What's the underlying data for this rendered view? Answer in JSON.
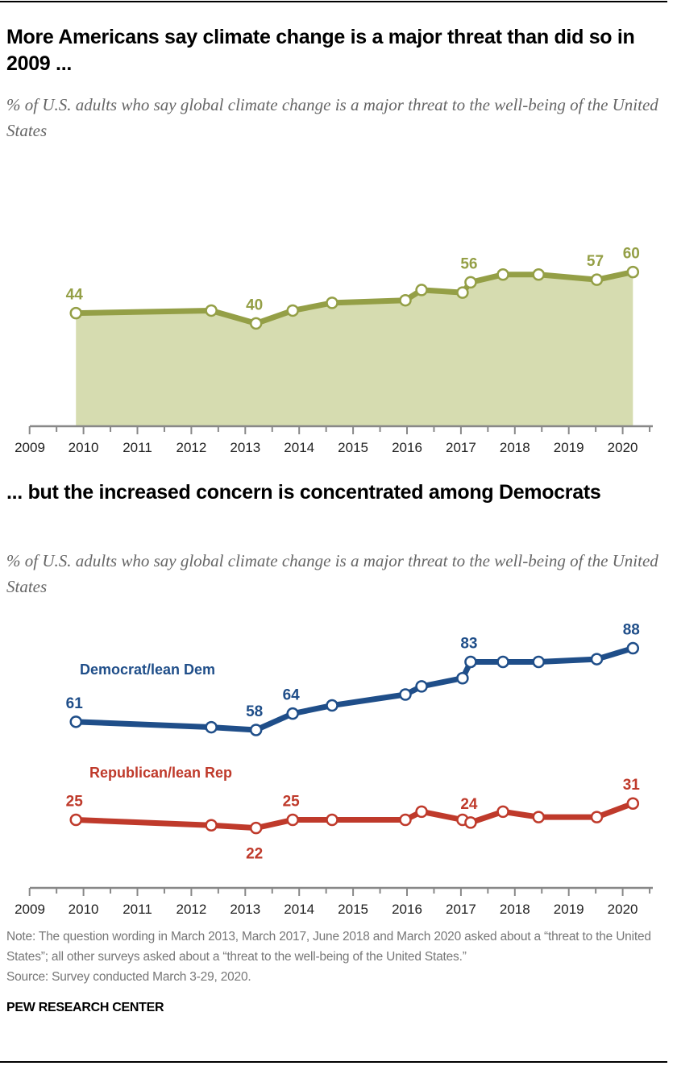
{
  "chart_data": [
    {
      "type": "area",
      "title": "More Americans say climate change is a major threat than did so in 2009 ...",
      "subtitle": "% of U.S. adults who say global climate change is a major threat to the well-being of the United States",
      "xlabel": "",
      "ylabel": "",
      "x_ticks": [
        2009,
        2010,
        2011,
        2012,
        2013,
        2014,
        2015,
        2016,
        2017,
        2018,
        2019,
        2020
      ],
      "xlim": [
        2009,
        2020.55
      ],
      "ylim": [
        0,
        70
      ],
      "grid": false,
      "colors": {
        "line": "#949f46",
        "fill": "#d6dcb0",
        "label": "#949f46"
      },
      "series": [
        {
          "points": [
            {
              "x": 2009.86,
              "y": 44,
              "labeled": true
            },
            {
              "x": 2012.37,
              "y": 45
            },
            {
              "x": 2013.2,
              "y": 40,
              "labeled": true
            },
            {
              "x": 2013.88,
              "y": 45
            },
            {
              "x": 2014.61,
              "y": 48
            },
            {
              "x": 2015.97,
              "y": 49
            },
            {
              "x": 2016.27,
              "y": 53
            },
            {
              "x": 2017.03,
              "y": 52
            },
            {
              "x": 2017.18,
              "y": 56,
              "labeled": true
            },
            {
              "x": 2017.78,
              "y": 59
            },
            {
              "x": 2018.44,
              "y": 59
            },
            {
              "x": 2019.52,
              "y": 57,
              "labeled": true
            },
            {
              "x": 2020.19,
              "y": 60,
              "labeled": true
            }
          ]
        }
      ]
    },
    {
      "type": "line",
      "title": "... but the increased concern is concentrated among Democrats",
      "subtitle": "% of U.S. adults who say global climate change is a major threat to the well-being of the United States",
      "xlabel": "",
      "ylabel": "",
      "x_ticks": [
        2009,
        2010,
        2011,
        2012,
        2013,
        2014,
        2015,
        2016,
        2017,
        2018,
        2019,
        2020
      ],
      "xlim": [
        2009,
        2020.55
      ],
      "ylim": [
        0,
        100
      ],
      "grid": false,
      "series": [
        {
          "name": "Democrat/lean Dem",
          "color": "#1f4e89",
          "points": [
            {
              "x": 2009.86,
              "y": 61,
              "labeled": true
            },
            {
              "x": 2012.37,
              "y": 59
            },
            {
              "x": 2013.2,
              "y": 58,
              "labeled": true
            },
            {
              "x": 2013.88,
              "y": 64,
              "labeled": true
            },
            {
              "x": 2014.61,
              "y": 67
            },
            {
              "x": 2015.97,
              "y": 71
            },
            {
              "x": 2016.27,
              "y": 74
            },
            {
              "x": 2017.03,
              "y": 77
            },
            {
              "x": 2017.18,
              "y": 83,
              "labeled": true
            },
            {
              "x": 2017.78,
              "y": 83
            },
            {
              "x": 2018.44,
              "y": 83
            },
            {
              "x": 2019.52,
              "y": 84
            },
            {
              "x": 2020.19,
              "y": 88,
              "labeled": true
            }
          ]
        },
        {
          "name": "Republican/lean Rep",
          "color": "#bf3a2b",
          "points": [
            {
              "x": 2009.86,
              "y": 25,
              "labeled": true
            },
            {
              "x": 2012.37,
              "y": 23
            },
            {
              "x": 2013.2,
              "y": 22,
              "labeled": true
            },
            {
              "x": 2013.88,
              "y": 25,
              "labeled": true
            },
            {
              "x": 2014.61,
              "y": 25
            },
            {
              "x": 2015.97,
              "y": 25
            },
            {
              "x": 2016.27,
              "y": 28
            },
            {
              "x": 2017.03,
              "y": 25
            },
            {
              "x": 2017.18,
              "y": 24,
              "labeled": true
            },
            {
              "x": 2017.78,
              "y": 28
            },
            {
              "x": 2018.44,
              "y": 26
            },
            {
              "x": 2019.52,
              "y": 26
            },
            {
              "x": 2020.19,
              "y": 31,
              "labeled": true
            }
          ]
        }
      ]
    }
  ],
  "footer": {
    "note": "Note: The question wording in March 2013, March 2017, June 2018 and March 2020 asked about a “threat to the United States”; all other surveys asked about a “threat to the well-being of the United States.”",
    "source": "Source: Survey conducted March 3-29, 2020.",
    "brand": "PEW RESEARCH CENTER"
  }
}
